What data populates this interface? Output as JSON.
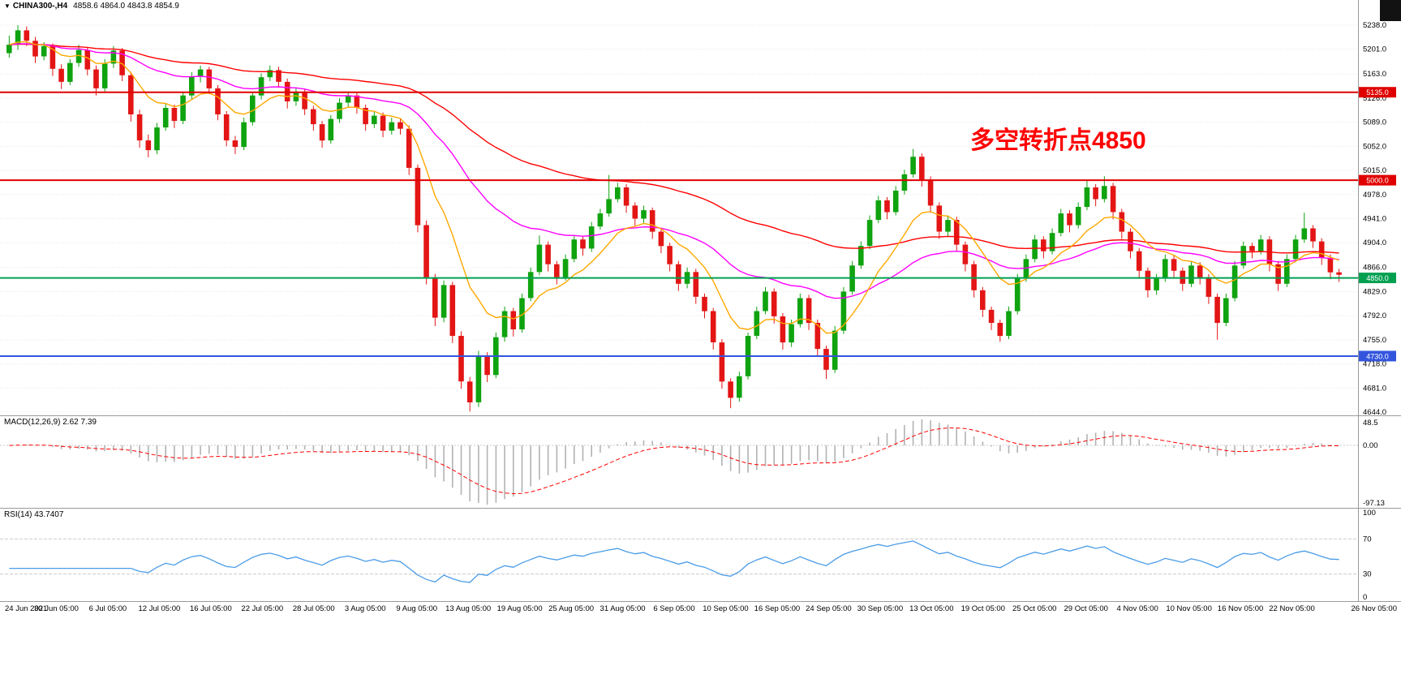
{
  "header": {
    "dropdown_icon": "▼",
    "symbol_timeframe": "CHINA300-,H4",
    "ohlc": "4858.6 4864.0 4843.8 4854.9"
  },
  "chart_data": {
    "type": "candlestick",
    "symbol": "CHINA300-",
    "timeframe": "H4",
    "colors": {
      "bull": "#0fa30f",
      "bear": "#e31515",
      "grid": "#e7e7e7"
    },
    "price_axis": {
      "min": 4644.0,
      "max": 5238.0,
      "labels": [
        "5238.0",
        "5201.0",
        "5163.0",
        "5126.0",
        "5089.0",
        "5052.0",
        "5015.0",
        "4978.0",
        "4941.0",
        "4904.0",
        "4866.0",
        "4829.0",
        "4792.0",
        "4755.0",
        "4718.0",
        "4681.0",
        "4644.0"
      ]
    },
    "hlines": [
      {
        "price": 5135.0,
        "label": "5135.0",
        "color": "#e00000",
        "width": 2
      },
      {
        "price": 5000.0,
        "label": "5000.0",
        "color": "#e00000",
        "width": 2
      },
      {
        "price": 4850.0,
        "label": "4850.0",
        "color": "#00a050",
        "width": 2
      },
      {
        "price": 4730.0,
        "label": "4730.0",
        "color": "#3355dd",
        "width": 2
      }
    ],
    "annotation": {
      "text": "多空转折点4850",
      "color": "#ff0000"
    },
    "moving_averages": [
      {
        "name": "fast",
        "period": 10,
        "color": "#ffa800"
      },
      {
        "name": "medium",
        "period": 34,
        "color": "#ff00ff"
      },
      {
        "name": "slow",
        "period": 72,
        "color": "#ff0000"
      }
    ],
    "candles": [
      [
        5195,
        5222,
        5188,
        5208
      ],
      [
        5208,
        5238,
        5200,
        5230
      ],
      [
        5230,
        5236,
        5206,
        5214
      ],
      [
        5214,
        5220,
        5180,
        5190
      ],
      [
        5190,
        5212,
        5184,
        5206
      ],
      [
        5206,
        5210,
        5160,
        5171
      ],
      [
        5171,
        5178,
        5140,
        5151
      ],
      [
        5151,
        5186,
        5146,
        5180
      ],
      [
        5180,
        5208,
        5174,
        5200
      ],
      [
        5200,
        5204,
        5161,
        5170
      ],
      [
        5170,
        5176,
        5130,
        5141
      ],
      [
        5141,
        5186,
        5136,
        5179
      ],
      [
        5179,
        5206,
        5172,
        5199
      ],
      [
        5199,
        5203,
        5152,
        5161
      ],
      [
        5161,
        5166,
        5090,
        5101
      ],
      [
        5101,
        5108,
        5050,
        5061
      ],
      [
        5061,
        5070,
        5035,
        5046
      ],
      [
        5046,
        5088,
        5040,
        5081
      ],
      [
        5081,
        5118,
        5076,
        5111
      ],
      [
        5111,
        5116,
        5080,
        5091
      ],
      [
        5091,
        5136,
        5086,
        5130
      ],
      [
        5130,
        5166,
        5124,
        5159
      ],
      [
        5159,
        5176,
        5150,
        5170
      ],
      [
        5170,
        5174,
        5132,
        5141
      ],
      [
        5141,
        5146,
        5092,
        5101
      ],
      [
        5101,
        5106,
        5052,
        5061
      ],
      [
        5061,
        5068,
        5040,
        5051
      ],
      [
        5051,
        5096,
        5046,
        5089
      ],
      [
        5089,
        5136,
        5084,
        5130
      ],
      [
        5130,
        5164,
        5124,
        5158
      ],
      [
        5158,
        5176,
        5152,
        5169
      ],
      [
        5169,
        5174,
        5142,
        5151
      ],
      [
        5151,
        5156,
        5110,
        5121
      ],
      [
        5121,
        5142,
        5114,
        5136
      ],
      [
        5136,
        5140,
        5100,
        5109
      ],
      [
        5109,
        5114,
        5076,
        5086
      ],
      [
        5086,
        5091,
        5050,
        5061
      ],
      [
        5061,
        5100,
        5056,
        5094
      ],
      [
        5094,
        5126,
        5088,
        5119
      ],
      [
        5119,
        5136,
        5112,
        5130
      ],
      [
        5130,
        5134,
        5102,
        5111
      ],
      [
        5111,
        5116,
        5076,
        5086
      ],
      [
        5086,
        5106,
        5080,
        5099
      ],
      [
        5099,
        5104,
        5066,
        5076
      ],
      [
        5076,
        5096,
        5070,
        5089
      ],
      [
        5089,
        5094,
        5070,
        5079
      ],
      [
        5079,
        5084,
        5008,
        5019
      ],
      [
        5019,
        5024,
        4920,
        4931
      ],
      [
        4931,
        4938,
        4840,
        4851
      ],
      [
        4851,
        4856,
        4776,
        4789
      ],
      [
        4789,
        4846,
        4782,
        4839
      ],
      [
        4839,
        4844,
        4750,
        4761
      ],
      [
        4761,
        4768,
        4680,
        4691
      ],
      [
        4691,
        4698,
        4645,
        4659
      ],
      [
        4659,
        4738,
        4652,
        4731
      ],
      [
        4731,
        4736,
        4690,
        4701
      ],
      [
        4701,
        4766,
        4696,
        4759
      ],
      [
        4759,
        4806,
        4752,
        4799
      ],
      [
        4799,
        4804,
        4760,
        4771
      ],
      [
        4771,
        4826,
        4766,
        4819
      ],
      [
        4819,
        4866,
        4814,
        4859
      ],
      [
        4859,
        4915,
        4854,
        4901
      ],
      [
        4901,
        4906,
        4860,
        4871
      ],
      [
        4871,
        4876,
        4840,
        4851
      ],
      [
        4851,
        4886,
        4846,
        4879
      ],
      [
        4879,
        4916,
        4874,
        4909
      ],
      [
        4909,
        4914,
        4884,
        4895
      ],
      [
        4895,
        4936,
        4890,
        4929
      ],
      [
        4929,
        4956,
        4924,
        4949
      ],
      [
        4949,
        5008,
        4944,
        4971
      ],
      [
        4971,
        4996,
        4966,
        4989
      ],
      [
        4989,
        4994,
        4950,
        4961
      ],
      [
        4961,
        4966,
        4930,
        4941
      ],
      [
        4941,
        4961,
        4934,
        4954
      ],
      [
        4954,
        4958,
        4910,
        4921
      ],
      [
        4921,
        4926,
        4888,
        4899
      ],
      [
        4899,
        4904,
        4860,
        4871
      ],
      [
        4871,
        4876,
        4830,
        4841
      ],
      [
        4841,
        4866,
        4834,
        4859
      ],
      [
        4859,
        4864,
        4810,
        4821
      ],
      [
        4821,
        4826,
        4788,
        4799
      ],
      [
        4799,
        4804,
        4740,
        4751
      ],
      [
        4751,
        4756,
        4680,
        4691
      ],
      [
        4691,
        4696,
        4650,
        4666
      ],
      [
        4666,
        4706,
        4660,
        4699
      ],
      [
        4699,
        4766,
        4694,
        4761
      ],
      [
        4761,
        4806,
        4756,
        4799
      ],
      [
        4799,
        4836,
        4794,
        4829
      ],
      [
        4829,
        4834,
        4780,
        4791
      ],
      [
        4791,
        4796,
        4740,
        4751
      ],
      [
        4751,
        4786,
        4744,
        4779
      ],
      [
        4779,
        4826,
        4774,
        4819
      ],
      [
        4819,
        4824,
        4770,
        4781
      ],
      [
        4781,
        4786,
        4730,
        4741
      ],
      [
        4741,
        4746,
        4695,
        4709
      ],
      [
        4709,
        4776,
        4704,
        4769
      ],
      [
        4769,
        4836,
        4764,
        4829
      ],
      [
        4829,
        4876,
        4824,
        4869
      ],
      [
        4869,
        4906,
        4864,
        4899
      ],
      [
        4899,
        4946,
        4894,
        4939
      ],
      [
        4939,
        4976,
        4934,
        4969
      ],
      [
        4969,
        4974,
        4940,
        4951
      ],
      [
        4951,
        4991,
        4946,
        4984
      ],
      [
        4984,
        5016,
        4978,
        5009
      ],
      [
        5009,
        5048,
        5004,
        5036
      ],
      [
        5036,
        5041,
        4990,
        5001
      ],
      [
        5001,
        5006,
        4950,
        4961
      ],
      [
        4961,
        4966,
        4910,
        4921
      ],
      [
        4921,
        4946,
        4914,
        4939
      ],
      [
        4939,
        4944,
        4890,
        4901
      ],
      [
        4901,
        4906,
        4860,
        4871
      ],
      [
        4871,
        4876,
        4820,
        4831
      ],
      [
        4831,
        4836,
        4790,
        4801
      ],
      [
        4801,
        4806,
        4770,
        4781
      ],
      [
        4781,
        4786,
        4752,
        4761
      ],
      [
        4761,
        4806,
        4756,
        4799
      ],
      [
        4799,
        4856,
        4794,
        4849
      ],
      [
        4849,
        4886,
        4844,
        4879
      ],
      [
        4879,
        4916,
        4874,
        4909
      ],
      [
        4909,
        4914,
        4880,
        4891
      ],
      [
        4891,
        4926,
        4886,
        4919
      ],
      [
        4919,
        4956,
        4914,
        4949
      ],
      [
        4949,
        4954,
        4920,
        4931
      ],
      [
        4931,
        4966,
        4926,
        4959
      ],
      [
        4959,
        5000,
        4954,
        4989
      ],
      [
        4989,
        4994,
        4960,
        4971
      ],
      [
        4971,
        5006,
        4966,
        4991
      ],
      [
        4991,
        4996,
        4940,
        4951
      ],
      [
        4951,
        4956,
        4910,
        4921
      ],
      [
        4921,
        4926,
        4880,
        4891
      ],
      [
        4891,
        4896,
        4850,
        4861
      ],
      [
        4861,
        4866,
        4820,
        4831
      ],
      [
        4831,
        4856,
        4824,
        4849
      ],
      [
        4849,
        4886,
        4844,
        4879
      ],
      [
        4879,
        4884,
        4850,
        4861
      ],
      [
        4861,
        4866,
        4830,
        4841
      ],
      [
        4841,
        4876,
        4836,
        4869
      ],
      [
        4869,
        4874,
        4840,
        4851
      ],
      [
        4851,
        4856,
        4810,
        4821
      ],
      [
        4821,
        4826,
        4755,
        4781
      ],
      [
        4781,
        4826,
        4776,
        4819
      ],
      [
        4819,
        4876,
        4814,
        4869
      ],
      [
        4869,
        4906,
        4864,
        4899
      ],
      [
        4899,
        4904,
        4880,
        4891
      ],
      [
        4891,
        4916,
        4886,
        4909
      ],
      [
        4909,
        4914,
        4860,
        4871
      ],
      [
        4871,
        4876,
        4830,
        4841
      ],
      [
        4841,
        4886,
        4836,
        4879
      ],
      [
        4879,
        4916,
        4874,
        4909
      ],
      [
        4909,
        4950,
        4904,
        4926
      ],
      [
        4926,
        4931,
        4896,
        4906
      ],
      [
        4906,
        4911,
        4870,
        4881
      ],
      [
        4881,
        4886,
        4848,
        4858.6
      ],
      [
        4858.6,
        4864.0,
        4843.8,
        4854.9
      ]
    ],
    "time_labels": [
      "24 Jun 2021",
      "30 Jun 05:00",
      "6 Jul 05:00",
      "12 Jul 05:00",
      "16 Jul 05:00",
      "22 Jul 05:00",
      "28 Jul 05:00",
      "3 Aug 05:00",
      "9 Aug 05:00",
      "13 Aug 05:00",
      "19 Aug 05:00",
      "25 Aug 05:00",
      "31 Aug 05:00",
      "6 Sep 05:00",
      "10 Sep 05:00",
      "16 Sep 05:00",
      "24 Sep 05:00",
      "30 Sep 05:00",
      "13 Oct 05:00",
      "19 Oct 05:00",
      "25 Oct 05:00",
      "29 Oct 05:00",
      "4 Nov 05:00",
      "10 Nov 05:00",
      "16 Nov 05:00",
      "22 Nov 05:00",
      "26 Nov 05:00"
    ],
    "macd": {
      "label": "MACD(12,26,9)",
      "values": "2.62 7.39",
      "fast": 12,
      "slow": 26,
      "signal": 9,
      "axis": [
        "48.5",
        "0.00",
        "-97.13"
      ],
      "hist_color": "#b2b2b2",
      "signal_color": "#ff0000"
    },
    "rsi": {
      "label": "RSI(14)",
      "value": "43.7407",
      "period": 14,
      "axis": [
        "100",
        "70",
        "30",
        "0"
      ],
      "levels": [
        70,
        30
      ],
      "color": "#4a9ce8"
    }
  }
}
